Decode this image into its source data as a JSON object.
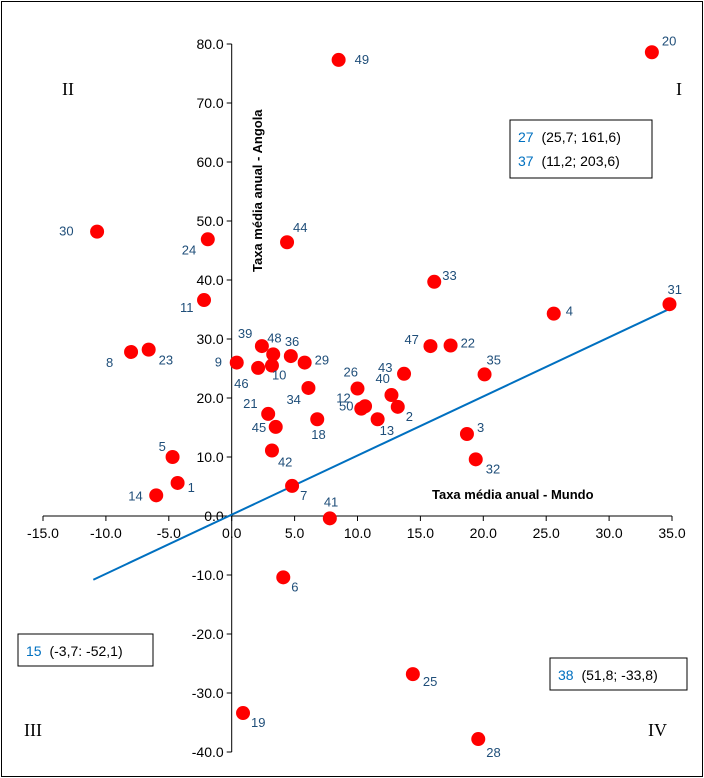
{
  "chart_data": {
    "type": "scatter",
    "xlabel": "Taxa média anual - Mundo",
    "ylabel": "Taxa média anual - Angola",
    "xlim": [
      -15,
      35
    ],
    "ylim": [
      -40,
      80
    ],
    "x_ticks": [
      "-15.0",
      "-10.0",
      "-5.0",
      "0.0",
      "5.0",
      "10.0",
      "15.0",
      "20.0",
      "25.0",
      "30.0",
      "35.0"
    ],
    "y_ticks": [
      "-40.0",
      "-30.0",
      "-20.0",
      "-10.0",
      "0.0",
      "10.0",
      "20.0",
      "30.0",
      "40.0",
      "50.0",
      "60.0",
      "70.0",
      "80.0"
    ],
    "quadrants": [
      "I",
      "II",
      "III",
      "IV"
    ],
    "trendline": {
      "x": [
        -11.0,
        34.9
      ],
      "y": [
        -10.8,
        35.2
      ]
    },
    "points": [
      {
        "label": "1",
        "x": -4.3,
        "y": 5.6
      },
      {
        "label": "2",
        "x": 13.2,
        "y": 18.5
      },
      {
        "label": "3",
        "x": 18.7,
        "y": 13.9
      },
      {
        "label": "4",
        "x": 25.6,
        "y": 34.3
      },
      {
        "label": "5",
        "x": -4.7,
        "y": 10.0
      },
      {
        "label": "6",
        "x": 4.1,
        "y": -10.4
      },
      {
        "label": "7",
        "x": 4.8,
        "y": 5.1
      },
      {
        "label": "8",
        "x": -8.0,
        "y": 27.8
      },
      {
        "label": "9",
        "x": 0.4,
        "y": 26.0
      },
      {
        "label": "10",
        "x": 3.2,
        "y": 25.5
      },
      {
        "label": "11",
        "x": -2.2,
        "y": 36.6
      },
      {
        "label": "12",
        "x": 10.3,
        "y": 18.2
      },
      {
        "label": "13",
        "x": 11.6,
        "y": 16.4
      },
      {
        "label": "14",
        "x": -6.0,
        "y": 3.5
      },
      {
        "label": "18",
        "x": 6.8,
        "y": 16.4
      },
      {
        "label": "19",
        "x": 0.9,
        "y": -33.4
      },
      {
        "label": "20",
        "x": 33.4,
        "y": 78.6
      },
      {
        "label": "21",
        "x": 2.9,
        "y": 17.3
      },
      {
        "label": "22",
        "x": 17.4,
        "y": 28.9
      },
      {
        "label": "23",
        "x": -6.6,
        "y": 28.2
      },
      {
        "label": "24",
        "x": -1.9,
        "y": 46.9
      },
      {
        "label": "25",
        "x": 14.4,
        "y": -26.8
      },
      {
        "label": "26",
        "x": 10.0,
        "y": 21.6
      },
      {
        "label": "28",
        "x": 19.6,
        "y": -37.8
      },
      {
        "label": "29",
        "x": 5.8,
        "y": 26.0
      },
      {
        "label": "30",
        "x": -10.7,
        "y": 48.2
      },
      {
        "label": "31",
        "x": 34.8,
        "y": 35.9
      },
      {
        "label": "32",
        "x": 19.4,
        "y": 9.6
      },
      {
        "label": "33",
        "x": 16.1,
        "y": 39.7
      },
      {
        "label": "34",
        "x": 6.1,
        "y": 21.7
      },
      {
        "label": "35",
        "x": 20.1,
        "y": 24.0
      },
      {
        "label": "36",
        "x": 4.7,
        "y": 27.1
      },
      {
        "label": "39",
        "x": 2.4,
        "y": 28.8
      },
      {
        "label": "40",
        "x": 12.7,
        "y": 20.5
      },
      {
        "label": "41",
        "x": 7.8,
        "y": -0.4
      },
      {
        "label": "42",
        "x": 3.2,
        "y": 11.1
      },
      {
        "label": "43",
        "x": 13.7,
        "y": 24.1
      },
      {
        "label": "44",
        "x": 4.4,
        "y": 46.4
      },
      {
        "label": "45",
        "x": 3.5,
        "y": 15.1
      },
      {
        "label": "46",
        "x": 2.1,
        "y": 25.1
      },
      {
        "label": "47",
        "x": 15.8,
        "y": 28.8
      },
      {
        "label": "48",
        "x": 3.3,
        "y": 27.4
      },
      {
        "label": "49",
        "x": 8.5,
        "y": 77.3
      },
      {
        "label": "50",
        "x": 10.6,
        "y": 18.6
      }
    ],
    "annotations": [
      {
        "label": "27",
        "text": "(25,7; 161,6)"
      },
      {
        "label": "37",
        "text": "(11,2; 203,6)"
      },
      {
        "label": "15",
        "text": "(-3,7: -52,1)"
      },
      {
        "label": "38",
        "text": "(51,8; -33,8)"
      }
    ],
    "colors": {
      "point": "#ff0000",
      "trendline": "#0070c0",
      "point_label": "#1f4e79",
      "annotation_label": "#0070c0"
    }
  }
}
